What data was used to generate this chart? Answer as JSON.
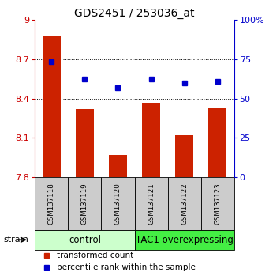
{
  "title": "GDS2451 / 253036_at",
  "samples": [
    "GSM137118",
    "GSM137119",
    "GSM137120",
    "GSM137121",
    "GSM137122",
    "GSM137123"
  ],
  "red_values": [
    8.87,
    8.32,
    7.97,
    8.37,
    8.12,
    8.33
  ],
  "blue_values": [
    8.68,
    8.55,
    8.48,
    8.55,
    8.52,
    8.53
  ],
  "ylim_left": [
    7.8,
    9.0
  ],
  "yticks_left": [
    7.8,
    8.1,
    8.4,
    8.7,
    9.0
  ],
  "ytick_labels_left": [
    "7.8",
    "8.1",
    "8.4",
    "8.7",
    "9"
  ],
  "yticks_right": [
    0,
    25,
    50,
    75,
    100
  ],
  "ytick_labels_right": [
    "0",
    "25",
    "50",
    "75",
    "100%"
  ],
  "left_axis_color": "#cc0000",
  "right_axis_color": "#0000cc",
  "bar_color": "#cc2200",
  "dot_color": "#0000cc",
  "gridline_ticks": [
    8.1,
    8.4,
    8.7
  ],
  "group1_label": "control",
  "group2_label": "TAC1 overexpressing",
  "group1_bg": "#ccffcc",
  "group2_bg": "#44ee44",
  "sample_box_bg": "#cccccc",
  "legend_red_label": "transformed count",
  "legend_blue_label": "percentile rank within the sample",
  "strain_label": "strain"
}
